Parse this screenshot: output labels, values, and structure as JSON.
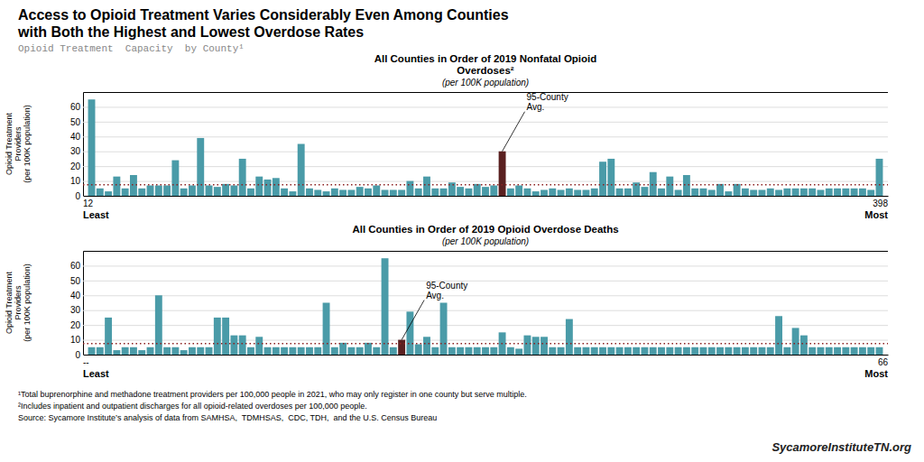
{
  "title": [
    "Access to Opioid Treatment Varies Considerably Even Among Counties",
    "with Both the Highest and Lowest Overdose Rates"
  ],
  "subtitle": "Opioid Treatment  Capacity  by County¹",
  "footnotes": [
    "¹Total buprenorphine and methadone treatment providers per 100,000 people in 2021, who may only register in one county but serve multiple.",
    "²Includes inpatient and outpatient discharges for all opioid-related overdoses per 100,000 people.",
    "Source: Sycamore Institute’s analysis of data from SAMHSA,  TDMHSAS,  CDC, TDH,  and the U.S. Census Bureau"
  ],
  "watermark": "SycamoreInstituteTN.org",
  "chart_data": [
    {
      "type": "bar",
      "title": "All Counties in Order of  2019 Nonfatal Opioid\nOverdoses²",
      "subtitle": "(per 100K population)",
      "y_label": "Opioid Treatment\nProviders\n(per 100K population)",
      "x_labels_left": [
        "12",
        "Least"
      ],
      "x_labels_right": [
        "398",
        "Most"
      ],
      "categories": [
        null,
        null,
        null,
        null,
        null,
        null,
        null,
        null,
        null,
        null,
        null,
        null,
        null,
        null,
        null,
        null,
        null,
        null,
        null,
        null,
        null,
        null,
        null,
        null,
        null,
        null,
        null,
        null,
        null,
        null,
        null,
        null,
        null,
        null,
        null,
        null,
        null,
        null,
        null,
        null,
        null,
        null,
        null,
        null,
        null,
        null,
        null,
        null,
        null,
        null,
        null,
        null,
        null,
        null,
        null,
        null,
        null,
        null,
        null,
        null,
        null,
        null,
        null,
        null,
        null,
        null,
        null,
        null,
        null,
        null,
        null,
        null,
        null,
        null,
        null,
        null,
        null,
        null,
        null,
        null,
        null,
        null,
        null,
        null,
        null,
        null,
        null,
        null,
        null,
        null,
        null,
        null,
        null,
        null,
        null
      ],
      "values": [
        65,
        5,
        3,
        13,
        5,
        14,
        5,
        7,
        7,
        7,
        24,
        5,
        7,
        39,
        7,
        6,
        8,
        7,
        25,
        5,
        13,
        11,
        12,
        5,
        3,
        35,
        5,
        4,
        3,
        5,
        4,
        4,
        6,
        5,
        7,
        4,
        4,
        4,
        10,
        5,
        13,
        5,
        5,
        9,
        6,
        5,
        8,
        6,
        7,
        30,
        5,
        7,
        5,
        3,
        4,
        5,
        4,
        5,
        4,
        4,
        5,
        23,
        25,
        5,
        5,
        9,
        6,
        16,
        5,
        13,
        4,
        14,
        5,
        5,
        4,
        8,
        3,
        8,
        5,
        4,
        4,
        5,
        4,
        5,
        5,
        5,
        5,
        4,
        5,
        5,
        5,
        5,
        5,
        4,
        25
      ],
      "colors": [
        "#4a9ba8",
        "#4a9ba8",
        "#4a9ba8",
        "#4a9ba8",
        "#4a9ba8",
        "#4a9ba8",
        "#4a9ba8",
        "#4a9ba8",
        "#4a9ba8",
        "#4a9ba8",
        "#4a9ba8",
        "#4a9ba8",
        "#4a9ba8",
        "#4a9ba8",
        "#4a9ba8",
        "#4a9ba8",
        "#4a9ba8",
        "#4a9ba8",
        "#4a9ba8",
        "#4a9ba8",
        "#4a9ba8",
        "#4a9ba8",
        "#4a9ba8",
        "#4a9ba8",
        "#4a9ba8",
        "#4a9ba8",
        "#4a9ba8",
        "#4a9ba8",
        "#4a9ba8",
        "#4a9ba8",
        "#4a9ba8",
        "#4a9ba8",
        "#4a9ba8",
        "#4a9ba8",
        "#4a9ba8",
        "#4a9ba8",
        "#4a9ba8",
        "#4a9ba8",
        "#4a9ba8",
        "#4a9ba8",
        "#4a9ba8",
        "#4a9ba8",
        "#4a9ba8",
        "#4a9ba8",
        "#4a9ba8",
        "#4a9ba8",
        "#4a9ba8",
        "#4a9ba8",
        "#4a9ba8",
        "#5a2020",
        "#4a9ba8",
        "#4a9ba8",
        "#4a9ba8",
        "#4a9ba8",
        "#4a9ba8",
        "#4a9ba8",
        "#4a9ba8",
        "#4a9ba8",
        "#4a9ba8",
        "#4a9ba8",
        "#4a9ba8",
        "#4a9ba8",
        "#4a9ba8",
        "#4a9ba8",
        "#4a9ba8",
        "#4a9ba8",
        "#4a9ba8",
        "#4a9ba8",
        "#4a9ba8",
        "#4a9ba8",
        "#4a9ba8",
        "#4a9ba8",
        "#4a9ba8",
        "#4a9ba8",
        "#4a9ba8",
        "#4a9ba8",
        "#4a9ba8",
        "#4a9ba8",
        "#4a9ba8",
        "#4a9ba8",
        "#4a9ba8",
        "#4a9ba8",
        "#4a9ba8",
        "#4a9ba8",
        "#4a9ba8",
        "#4a9ba8",
        "#4a9ba8",
        "#4a9ba8",
        "#4a9ba8",
        "#4a9ba8",
        "#4a9ba8",
        "#4a9ba8",
        "#4a9ba8",
        "#4a9ba8",
        "#4a9ba8"
      ],
      "reference_line": {
        "value": 7.5,
        "color": "#8b2020"
      },
      "annotations": [
        {
          "text": "95-County\nAvg.",
          "index": 49
        }
      ],
      "ylim": [
        0,
        70
      ],
      "yticks": [
        0,
        10,
        20,
        30,
        40,
        50,
        60
      ],
      "grid": true,
      "tick_labels": "y"
    },
    {
      "type": "bar",
      "title": "All Counties in Order of 2019 Opioid Overdose Deaths",
      "subtitle": "(per 100K population)",
      "y_label": "Opioid Treatment\nProviders\n(per 100K population)",
      "x_labels_left": [
        "--",
        "Least"
      ],
      "x_labels_right": [
        "66",
        "Most"
      ],
      "categories": [
        null,
        null,
        null,
        null,
        null,
        null,
        null,
        null,
        null,
        null,
        null,
        null,
        null,
        null,
        null,
        null,
        null,
        null,
        null,
        null,
        null,
        null,
        null,
        null,
        null,
        null,
        null,
        null,
        null,
        null,
        null,
        null,
        null,
        null,
        null,
        null,
        null,
        null,
        null,
        null,
        null,
        null,
        null,
        null,
        null,
        null,
        null,
        null,
        null,
        null,
        null,
        null,
        null,
        null,
        null,
        null,
        null,
        null,
        null,
        null,
        null,
        null,
        null,
        null,
        null,
        null,
        null,
        null,
        null,
        null,
        null,
        null,
        null,
        null,
        null,
        null,
        null,
        null,
        null,
        null,
        null,
        null,
        null,
        null,
        null,
        null,
        null,
        null,
        null,
        null,
        null,
        null,
        null,
        null,
        null
      ],
      "values": [
        5,
        5,
        25,
        3,
        5,
        5,
        3,
        5,
        40,
        5,
        5,
        3,
        5,
        5,
        5,
        25,
        25,
        13,
        13,
        5,
        12,
        5,
        5,
        5,
        5,
        5,
        5,
        5,
        35,
        5,
        8,
        5,
        5,
        8,
        5,
        65,
        5,
        10,
        29,
        7,
        12,
        5,
        35,
        5,
        5,
        5,
        5,
        5,
        5,
        15,
        5,
        4,
        13,
        12,
        12,
        5,
        5,
        24,
        5,
        5,
        5,
        5,
        5,
        5,
        5,
        5,
        5,
        5,
        5,
        5,
        5,
        5,
        5,
        5,
        5,
        5,
        5,
        5,
        5,
        5,
        5,
        5,
        26,
        5,
        18,
        13,
        5,
        5,
        5,
        5,
        5,
        5,
        5,
        5,
        5
      ],
      "colors": [
        "#4a9ba8",
        "#4a9ba8",
        "#4a9ba8",
        "#4a9ba8",
        "#4a9ba8",
        "#4a9ba8",
        "#4a9ba8",
        "#4a9ba8",
        "#4a9ba8",
        "#4a9ba8",
        "#4a9ba8",
        "#4a9ba8",
        "#4a9ba8",
        "#4a9ba8",
        "#4a9ba8",
        "#4a9ba8",
        "#4a9ba8",
        "#4a9ba8",
        "#4a9ba8",
        "#4a9ba8",
        "#4a9ba8",
        "#4a9ba8",
        "#4a9ba8",
        "#4a9ba8",
        "#4a9ba8",
        "#4a9ba8",
        "#4a9ba8",
        "#4a9ba8",
        "#4a9ba8",
        "#4a9ba8",
        "#4a9ba8",
        "#4a9ba8",
        "#4a9ba8",
        "#4a9ba8",
        "#4a9ba8",
        "#4a9ba8",
        "#4a9ba8",
        "#5a2020",
        "#4a9ba8",
        "#4a9ba8",
        "#4a9ba8",
        "#4a9ba8",
        "#4a9ba8",
        "#4a9ba8",
        "#4a9ba8",
        "#4a9ba8",
        "#4a9ba8",
        "#4a9ba8",
        "#4a9ba8",
        "#4a9ba8",
        "#4a9ba8",
        "#4a9ba8",
        "#4a9ba8",
        "#4a9ba8",
        "#4a9ba8",
        "#4a9ba8",
        "#4a9ba8",
        "#4a9ba8",
        "#4a9ba8",
        "#4a9ba8",
        "#4a9ba8",
        "#4a9ba8",
        "#4a9ba8",
        "#4a9ba8",
        "#4a9ba8",
        "#4a9ba8",
        "#4a9ba8",
        "#4a9ba8",
        "#4a9ba8",
        "#4a9ba8",
        "#4a9ba8",
        "#4a9ba8",
        "#4a9ba8",
        "#4a9ba8",
        "#4a9ba8",
        "#4a9ba8",
        "#4a9ba8",
        "#4a9ba8",
        "#4a9ba8",
        "#4a9ba8",
        "#4a9ba8",
        "#4a9ba8",
        "#4a9ba8",
        "#4a9ba8",
        "#4a9ba8",
        "#4a9ba8",
        "#4a9ba8",
        "#4a9ba8",
        "#4a9ba8",
        "#4a9ba8",
        "#4a9ba8",
        "#4a9ba8",
        "#4a9ba8",
        "#4a9ba8",
        "#4a9ba8"
      ],
      "reference_line": {
        "value": 7.5,
        "color": "#8b2020"
      },
      "annotations": [
        {
          "text": "95-County\nAvg.",
          "index": 37
        }
      ],
      "ylim": [
        0,
        70
      ],
      "yticks": [
        0,
        10,
        20,
        30,
        40,
        50,
        60
      ],
      "grid": true,
      "tick_labels": "y"
    }
  ]
}
